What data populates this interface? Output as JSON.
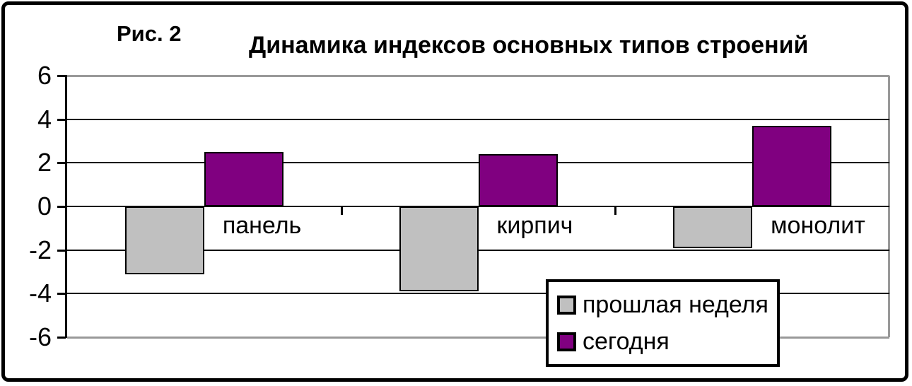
{
  "figure": {
    "label": "Рис. 2",
    "title": "Динамика индексов основных типов строений"
  },
  "chart_data": {
    "type": "bar",
    "title": "Динамика индексов основных типов строений",
    "categories": [
      "панель",
      "кирпич",
      "монолит"
    ],
    "series": [
      {
        "name": "прошлая неделя",
        "color": "#C0C0C0",
        "values": [
          -3.1,
          -3.9,
          -1.9
        ]
      },
      {
        "name": "сегодня",
        "color": "#800080",
        "values": [
          2.5,
          2.4,
          3.7
        ]
      }
    ],
    "xlabel": "",
    "ylabel": "",
    "ylim": [
      -6,
      6
    ],
    "yticks": [
      6,
      4,
      2,
      0,
      -2,
      -4,
      -6
    ],
    "grid": "horizontal",
    "legend_position": "inside-bottom-right"
  },
  "colors": {
    "bar_last_week": "#C0C0C0",
    "bar_today": "#800080",
    "grid": "#000000",
    "edge_grid": "#999999",
    "axis": "#000000",
    "background": "#ffffff"
  }
}
